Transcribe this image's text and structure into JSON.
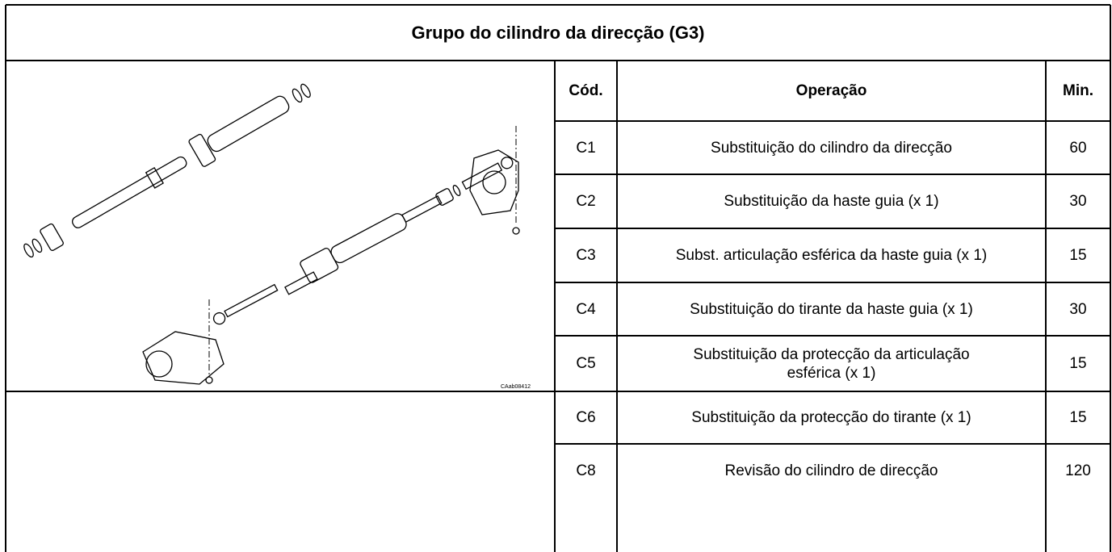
{
  "header": {
    "title": "Grupo do cilindro da direcção (G3)"
  },
  "image": {
    "caption": "CAab08412"
  },
  "table": {
    "columns": [
      "Cód.",
      "Operação",
      "Min."
    ],
    "rows": [
      [
        "C1",
        "Substituição do cilindro da direcção",
        "60"
      ],
      [
        "C2",
        "Substituição da haste guia (x 1)",
        "30"
      ],
      [
        "C3",
        "Subst. articulação esférica da haste guia (x 1)",
        "15"
      ],
      [
        "C4",
        "Substituição do tirante da haste guia (x 1)",
        "30"
      ],
      [
        "C5",
        "Substituição da protecção da articulação esférica (x 1)",
        "15"
      ],
      [
        "C6",
        "Substituição da protecção do tirante (x 1)",
        "15"
      ],
      [
        "C8",
        "Revisão do cilindro de direcção",
        "120"
      ]
    ]
  }
}
